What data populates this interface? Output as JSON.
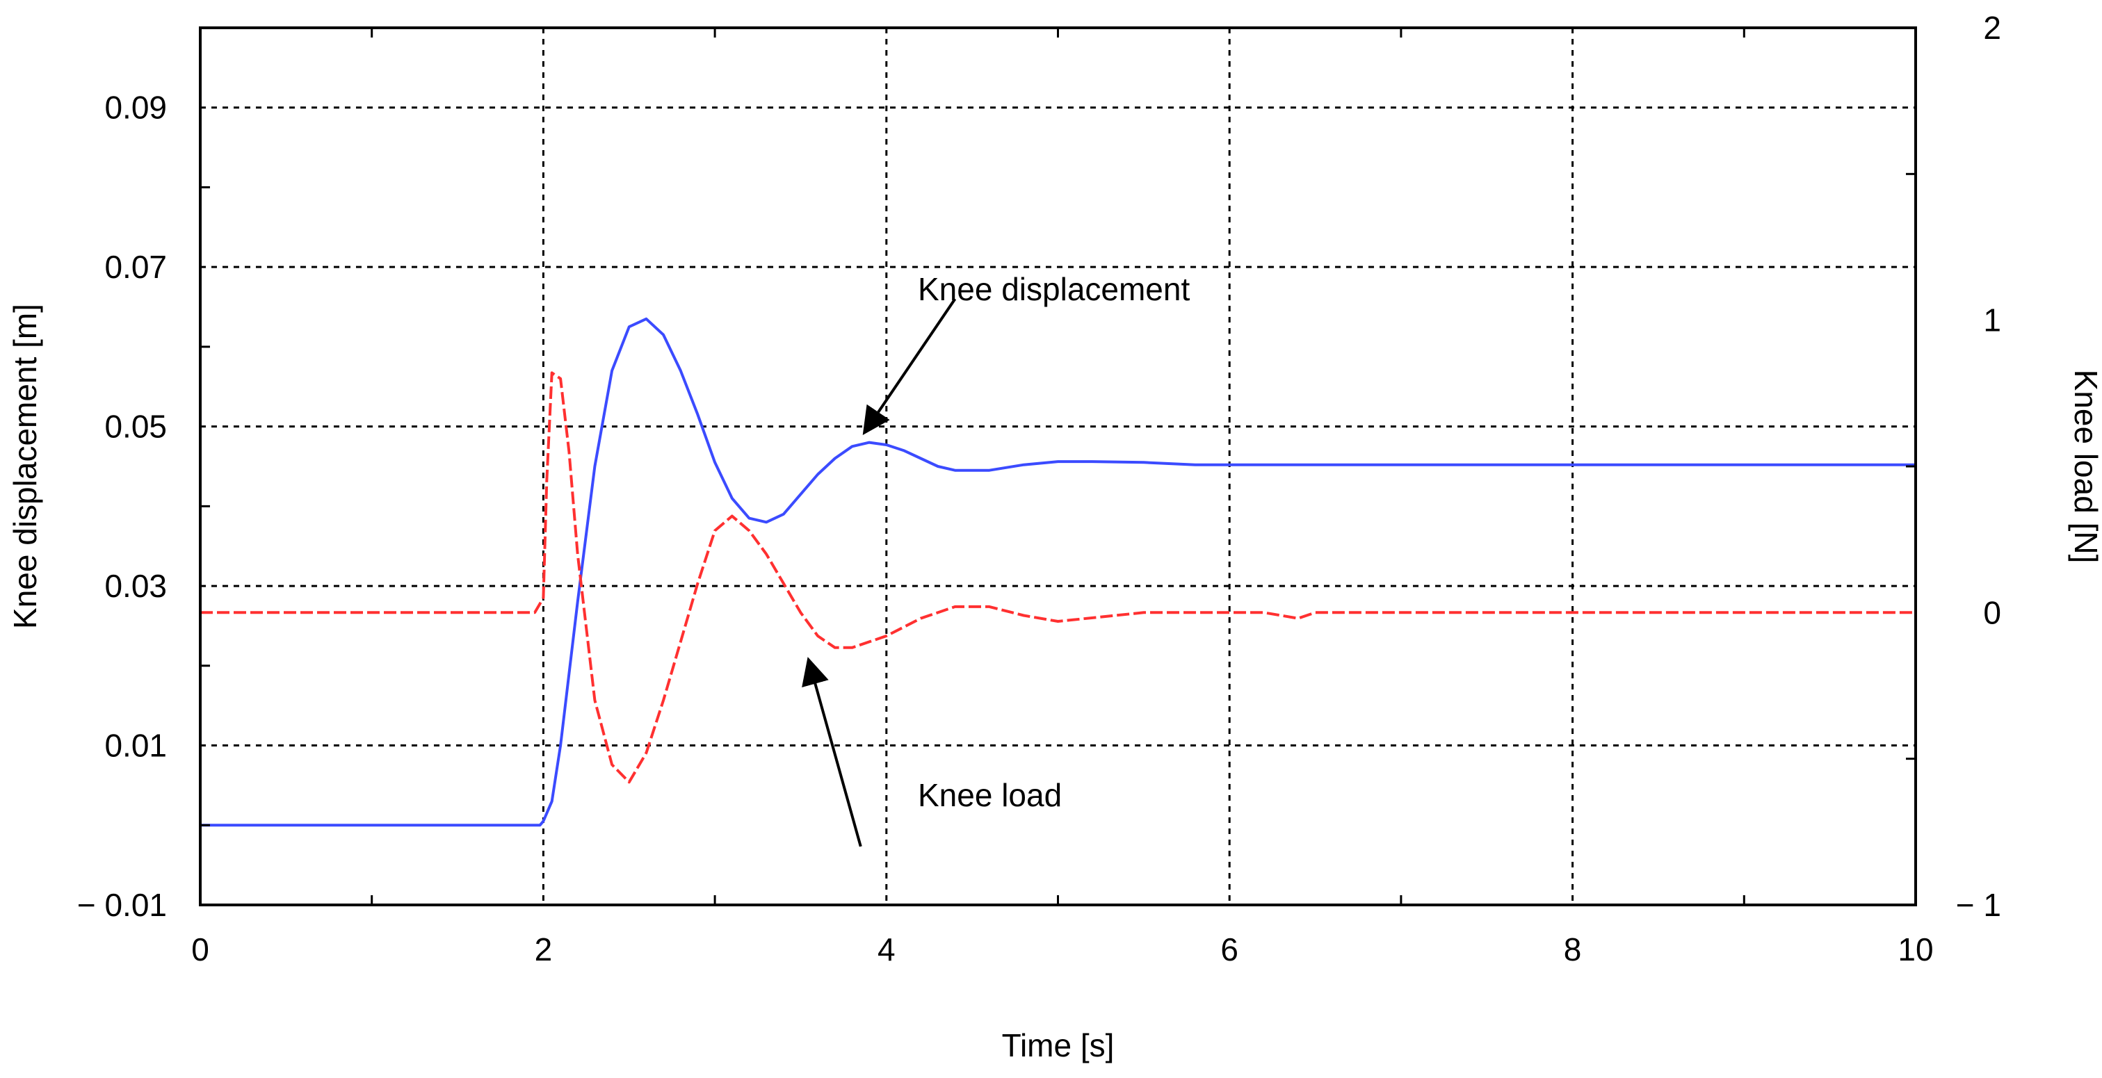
{
  "chart_data": {
    "type": "line",
    "xlabel": "Time [s]",
    "ylabel_left": "Knee displacement [m]",
    "ylabel_right": "Knee load [N]",
    "xlim": [
      0,
      10
    ],
    "ylim_left": [
      -0.01,
      0.1
    ],
    "ylim_right": [
      -1,
      2
    ],
    "x_ticks": [
      "0",
      "2",
      "4",
      "6",
      "8",
      "10"
    ],
    "y_ticks_left": [
      "0.09",
      "0.07",
      "0.05",
      "0.03",
      "0.01",
      "− 0.01"
    ],
    "y_ticks_right": [
      "2",
      "1",
      "0",
      "− 1"
    ],
    "grid": true,
    "series": [
      {
        "name": "Knee displacement",
        "axis": "left",
        "color": "#3b4bff",
        "style": "solid",
        "x": [
          0,
          1.98,
          2.0,
          2.05,
          2.1,
          2.2,
          2.3,
          2.4,
          2.5,
          2.6,
          2.7,
          2.8,
          2.9,
          3.0,
          3.1,
          3.2,
          3.3,
          3.4,
          3.5,
          3.6,
          3.7,
          3.8,
          3.9,
          4.0,
          4.1,
          4.2,
          4.3,
          4.4,
          4.6,
          4.8,
          5.0,
          5.2,
          5.5,
          5.8,
          6.0,
          7.0,
          8.0,
          9.0,
          10.0
        ],
        "y": [
          0,
          0,
          0.0005,
          0.003,
          0.01,
          0.028,
          0.045,
          0.057,
          0.0625,
          0.0635,
          0.0615,
          0.057,
          0.0515,
          0.0455,
          0.041,
          0.0385,
          0.038,
          0.039,
          0.0415,
          0.044,
          0.046,
          0.0475,
          0.048,
          0.0477,
          0.047,
          0.046,
          0.045,
          0.0445,
          0.0445,
          0.0452,
          0.0456,
          0.0456,
          0.0455,
          0.0452,
          0.0452,
          0.0452,
          0.0452,
          0.0452,
          0.0452
        ]
      },
      {
        "name": "Knee load",
        "axis": "right",
        "color": "#ff3030",
        "style": "dashed",
        "x": [
          0,
          1.95,
          2.0,
          2.02,
          2.05,
          2.1,
          2.15,
          2.2,
          2.3,
          2.4,
          2.5,
          2.6,
          2.7,
          2.8,
          2.9,
          3.0,
          3.1,
          3.2,
          3.3,
          3.4,
          3.5,
          3.6,
          3.7,
          3.8,
          4.0,
          4.2,
          4.4,
          4.6,
          4.8,
          5.0,
          5.5,
          6.0,
          6.2,
          6.4,
          6.5,
          7.0,
          8.0,
          9.0,
          10.0
        ],
        "y": [
          0.0,
          0.0,
          0.05,
          0.45,
          0.82,
          0.8,
          0.55,
          0.2,
          -0.3,
          -0.52,
          -0.58,
          -0.48,
          -0.3,
          -0.1,
          0.1,
          0.28,
          0.33,
          0.28,
          0.2,
          0.1,
          0.0,
          -0.08,
          -0.12,
          -0.12,
          -0.08,
          -0.02,
          0.02,
          0.02,
          -0.01,
          -0.03,
          0.0,
          0.0,
          0.0,
          -0.02,
          0.0,
          0.0,
          0.0,
          0.0,
          0.0
        ]
      }
    ],
    "annotations": [
      {
        "text": "Knee displacement",
        "points_to_series": "Knee displacement"
      },
      {
        "text": "Knee load",
        "points_to_series": "Knee load"
      }
    ]
  }
}
